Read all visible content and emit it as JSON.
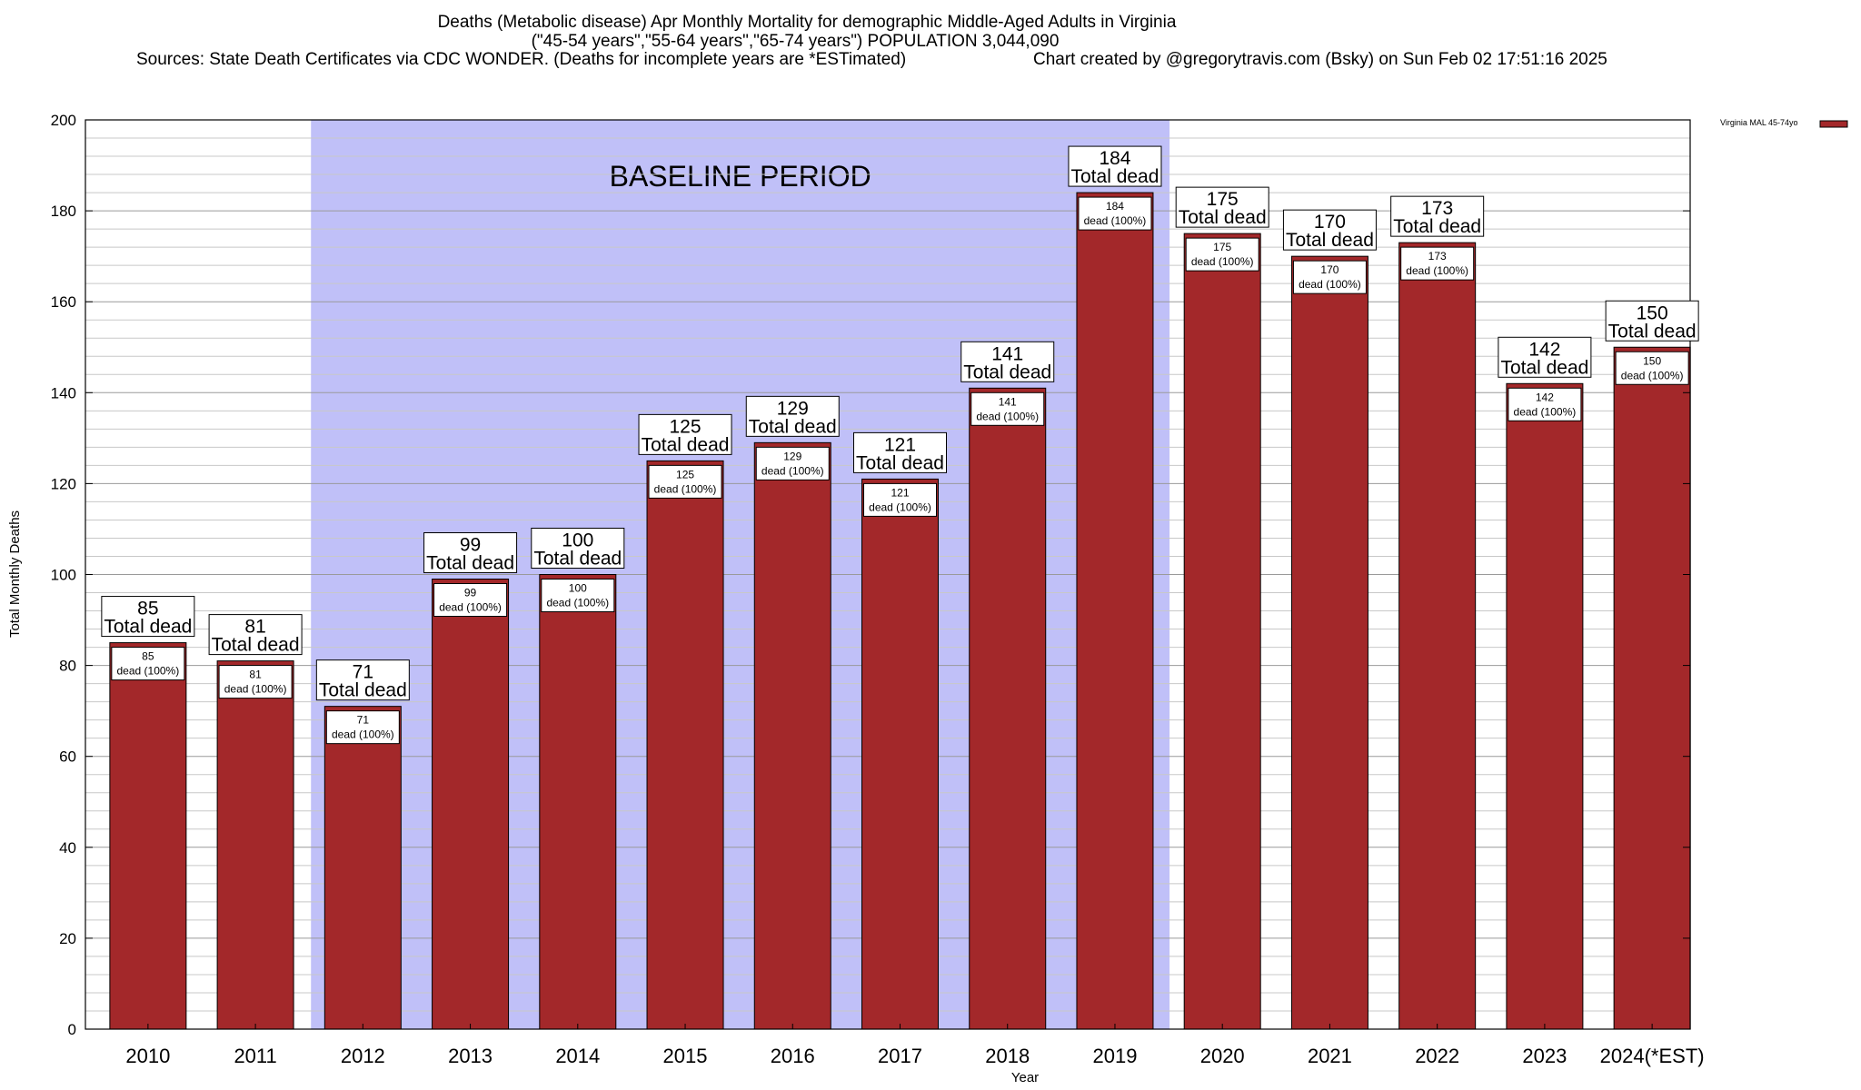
{
  "title": {
    "line1": "Deaths (Metabolic disease) Apr Monthly Mortality for demographic Middle-Aged Adults in Virginia",
    "line2": "(\"45-54 years\",\"55-64 years\",\"65-74 years\") POPULATION 3,044,090",
    "line3_left": "Sources: State Death Certificates via CDC WONDER. (Deaths for incomplete years are *ESTimated)",
    "line3_right": "Chart created by @gregorytravis.com (Bsky) on Sun Feb 02 17:51:16 2025"
  },
  "chart_data": {
    "type": "bar",
    "categories": [
      "2010",
      "2011",
      "2012",
      "2013",
      "2014",
      "2015",
      "2016",
      "2017",
      "2018",
      "2019",
      "2020",
      "2021",
      "2022",
      "2023",
      "2024(*EST)"
    ],
    "series": [
      {
        "name": "Virginia MAL 45-74yo",
        "values": [
          85,
          81,
          71,
          99,
          100,
          125,
          129,
          121,
          141,
          184,
          175,
          170,
          173,
          142,
          150
        ],
        "color": "#a3282a"
      }
    ],
    "xlabel": "Year",
    "ylabel": "Total Monthly Deaths",
    "ylim": [
      0,
      200
    ],
    "yticks": [
      0,
      20,
      40,
      60,
      80,
      100,
      120,
      140,
      160,
      180,
      200
    ],
    "grid": true,
    "legend_position": "top-right",
    "baseline_period": {
      "label": "BASELINE PERIOD",
      "from": "2012",
      "to": "2019",
      "color": "#c0c0f8"
    },
    "top_label_text": "Total dead",
    "inner_label_text": "dead (100%)"
  }
}
